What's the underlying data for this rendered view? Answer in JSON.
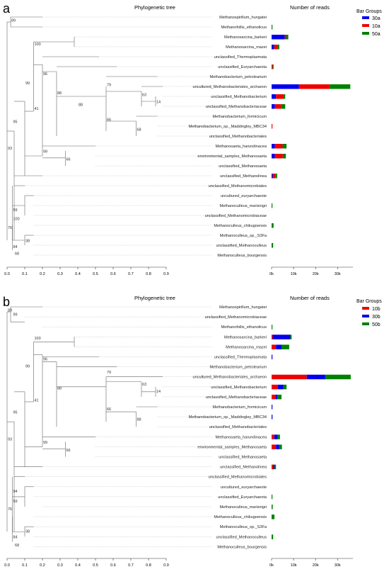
{
  "panel_a": {
    "letter": "a",
    "tree_title": "Phylogenetic tree",
    "reads_title": "Number of reads",
    "legend_title": "Bar Groups",
    "legend": [
      {
        "label": "30a",
        "color": "#0000ee"
      },
      {
        "label": "10a",
        "color": "#ee0000"
      },
      {
        "label": "50a",
        "color": "#008000"
      }
    ],
    "taxa": [
      {
        "name": "Methanospirillum_hungatei",
        "reads": [
          0,
          0,
          0
        ]
      },
      {
        "name": "Methanofollis_ethanolicus",
        "reads": [
          0,
          0,
          300
        ]
      },
      {
        "name": "Methanosarcina_barkeri",
        "reads": [
          6000,
          600,
          1000
        ]
      },
      {
        "name": "Methanosarcina_mazei",
        "reads": [
          1200,
          1500,
          800
        ]
      },
      {
        "name": "unclassified_Thermoplasmata",
        "reads": [
          0,
          0,
          0
        ]
      },
      {
        "name": "unclassified_Euryarchaeota",
        "reads": [
          0,
          500,
          400
        ]
      },
      {
        "name": "Methanobacterium_petrolearium",
        "reads": [
          0,
          0,
          0
        ]
      },
      {
        "name": "uncultured_Methanobacteriales_archaeon",
        "reads": [
          12500,
          14000,
          9300
        ]
      },
      {
        "name": "unclassified_Methanobacterium",
        "reads": [
          2000,
          3500,
          700
        ]
      },
      {
        "name": "unclassified_Methanobacteriaceae",
        "reads": [
          1500,
          2800,
          1900
        ]
      },
      {
        "name": "Methanobacterium_formicicum",
        "reads": [
          0,
          0,
          0
        ]
      },
      {
        "name": "Methanobacterium_sp._Maddingley_MBC34",
        "reads": [
          0,
          300,
          0
        ]
      },
      {
        "name": "unclassified_Methanobacteriales",
        "reads": [
          0,
          0,
          0
        ]
      },
      {
        "name": "Methanosaeta_harundinacea",
        "reads": [
          1500,
          3500,
          1800
        ]
      },
      {
        "name": "environmental_samples_Methanosaeta",
        "reads": [
          1500,
          3600,
          1400
        ]
      },
      {
        "name": "unclassified_Methanosaeta",
        "reads": [
          0,
          0,
          0
        ]
      },
      {
        "name": "unclassified_Methanolinea",
        "reads": [
          500,
          1200,
          800
        ]
      },
      {
        "name": "unclassified_Methanomicrobiales",
        "reads": [
          0,
          0,
          0
        ]
      },
      {
        "name": "uncultured_euryarchaeote",
        "reads": [
          0,
          0,
          0
        ]
      },
      {
        "name": "Methanoculleus_marisnigri",
        "reads": [
          0,
          0,
          300
        ]
      },
      {
        "name": "unclassified_Methanomicrobiaceae",
        "reads": [
          0,
          0,
          0
        ]
      },
      {
        "name": "Methanoculleus_chikugoensis",
        "reads": [
          0,
          0,
          900
        ]
      },
      {
        "name": "Methanoculleus_sp._S3Fa",
        "reads": [
          0,
          0,
          0
        ]
      },
      {
        "name": "unclassified_Methanoculleus",
        "reads": [
          0,
          0,
          700
        ]
      },
      {
        "name": "Methanoculleus_bourgensis",
        "reads": [
          0,
          0,
          0
        ]
      }
    ],
    "bootstraps": [
      {
        "label": "89",
        "row": 0.4,
        "x": 0.02
      },
      {
        "label": "100",
        "row": 2.8,
        "x": 0.15
      },
      {
        "label": "96",
        "row": 5.8,
        "x": 0.2
      },
      {
        "label": "99",
        "row": 6.7,
        "x": 0.1
      },
      {
        "label": "88",
        "row": 7.7,
        "x": 0.28
      },
      {
        "label": "79",
        "row": 6.9,
        "x": 0.56
      },
      {
        "label": "63",
        "row": 7.9,
        "x": 0.76
      },
      {
        "label": "88",
        "row": 8.9,
        "x": 0.4
      },
      {
        "label": "14",
        "row": 8.6,
        "x": 0.84
      },
      {
        "label": "41",
        "row": 9.3,
        "x": 0.15
      },
      {
        "label": "66",
        "row": 10.4,
        "x": 0.56
      },
      {
        "label": "68",
        "row": 11.4,
        "x": 0.73
      },
      {
        "label": "95",
        "row": 10.6,
        "x": 0.03
      },
      {
        "label": "99",
        "row": 13.6,
        "x": 0.2
      },
      {
        "label": "66",
        "row": 14.4,
        "x": 0.33
      },
      {
        "label": "93",
        "row": 13.3,
        "x": 0.0
      },
      {
        "label": "59",
        "row": 19.5,
        "x": 0.03
      },
      {
        "label": "100",
        "row": 20.4,
        "x": 0.03
      },
      {
        "label": "76",
        "row": 21.3,
        "x": 0.0
      },
      {
        "label": "38",
        "row": 22.6,
        "x": 0.1
      },
      {
        "label": "84",
        "row": 23.2,
        "x": 0.03
      },
      {
        "label": "68",
        "row": 23.9,
        "x": 0.04
      }
    ]
  },
  "panel_b": {
    "letter": "b",
    "tree_title": "Phylogenetic tree",
    "reads_title": "Number of reads",
    "legend_title": "Bar Groups",
    "legend": [
      {
        "label": "10b",
        "color": "#ee0000"
      },
      {
        "label": "30b",
        "color": "#0000ee"
      },
      {
        "label": "50b",
        "color": "#008000"
      }
    ],
    "taxa": [
      {
        "name": "Methanospirillum_hungatei",
        "reads": [
          0,
          0,
          0
        ]
      },
      {
        "name": "unclassified_Methanomicrobiaceae",
        "reads": [
          0,
          0,
          0
        ]
      },
      {
        "name": "Methanofollis_ethanolicus",
        "reads": [
          0,
          0,
          300
        ]
      },
      {
        "name": "Methanosarcina_barkeri",
        "reads": [
          500,
          8000,
          600
        ]
      },
      {
        "name": "Methanosarcina_mazei",
        "reads": [
          2000,
          2500,
          3500
        ]
      },
      {
        "name": "unclassified_Thermoplasmata",
        "reads": [
          0,
          200,
          0
        ]
      },
      {
        "name": "Methanobacterium_petrolearium",
        "reads": [
          0,
          0,
          0
        ]
      },
      {
        "name": "uncultured_Methanobacteriales_archaeon",
        "reads": [
          16000,
          8500,
          11500
        ]
      },
      {
        "name": "unclassified_Methanobacterium",
        "reads": [
          2800,
          2500,
          1500
        ]
      },
      {
        "name": "unclassified_Methanobacteriaceae",
        "reads": [
          1800,
          800,
          1900
        ]
      },
      {
        "name": "Methanobacterium_formicicum",
        "reads": [
          0,
          200,
          0
        ]
      },
      {
        "name": "Methanobacterium_sp._Maddingley_MBC34",
        "reads": [
          0,
          400,
          0
        ]
      },
      {
        "name": "unclassified_Methanobacteriales",
        "reads": [
          0,
          0,
          0
        ]
      },
      {
        "name": "Methanosaeta_harundinacea",
        "reads": [
          1200,
          1600,
          1000
        ]
      },
      {
        "name": "environmental_samples_Methanosaeta",
        "reads": [
          2000,
          1500,
          1200
        ]
      },
      {
        "name": "unclassified_Methanosaeta",
        "reads": [
          0,
          0,
          0
        ]
      },
      {
        "name": "unclassified_Methanolinea",
        "reads": [
          700,
          600,
          700
        ]
      },
      {
        "name": "unclassified_Methanomicrobiales",
        "reads": [
          0,
          0,
          0
        ]
      },
      {
        "name": "uncultured_euryarchaeote",
        "reads": [
          0,
          0,
          0
        ]
      },
      {
        "name": "unclassified_Euryarchaeota",
        "reads": [
          0,
          0,
          300
        ]
      },
      {
        "name": "Methanoculleus_marisnigri",
        "reads": [
          0,
          0,
          500
        ]
      },
      {
        "name": "Methanoculleus_chikugoensis",
        "reads": [
          0,
          0,
          1300
        ]
      },
      {
        "name": "Methanoculleus_sp._S3Fa",
        "reads": [
          0,
          0,
          0
        ]
      },
      {
        "name": "unclassified_Methanoculleus",
        "reads": [
          0,
          0,
          700
        ]
      },
      {
        "name": "Methanoculleus_bourgensis",
        "reads": [
          0,
          0,
          0
        ]
      }
    ],
    "bootstraps": [
      {
        "label": "89",
        "row": 0.4,
        "x": 0.0
      },
      {
        "label": "99",
        "row": 0.8,
        "x": 0.03
      },
      {
        "label": "100",
        "row": 3.2,
        "x": 0.15
      },
      {
        "label": "96",
        "row": 5.3,
        "x": 0.2
      },
      {
        "label": "99",
        "row": 6.0,
        "x": 0.1
      },
      {
        "label": "79",
        "row": 6.6,
        "x": 0.56
      },
      {
        "label": "63",
        "row": 7.8,
        "x": 0.76
      },
      {
        "label": "88",
        "row": 8.2,
        "x": 0.28
      },
      {
        "label": "14",
        "row": 8.5,
        "x": 0.84
      },
      {
        "label": "41",
        "row": 9.4,
        "x": 0.15
      },
      {
        "label": "66",
        "row": 10.3,
        "x": 0.56
      },
      {
        "label": "88",
        "row": 11.3,
        "x": 0.73
      },
      {
        "label": "95",
        "row": 10.6,
        "x": 0.03
      },
      {
        "label": "99",
        "row": 13.6,
        "x": 0.2
      },
      {
        "label": "66",
        "row": 14.4,
        "x": 0.33
      },
      {
        "label": "93",
        "row": 13.3,
        "x": 0.0
      },
      {
        "label": "94",
        "row": 18.5,
        "x": 0.03
      },
      {
        "label": "59",
        "row": 19.5,
        "x": 0.03
      },
      {
        "label": "76",
        "row": 20.3,
        "x": 0.0
      },
      {
        "label": "38",
        "row": 22.5,
        "x": 0.1
      },
      {
        "label": "84",
        "row": 23.1,
        "x": 0.03
      },
      {
        "label": "68",
        "row": 23.9,
        "x": 0.04
      }
    ]
  },
  "tree_axis_ticks": [
    "0.0",
    "0.1",
    "0.2",
    "0.3",
    "0.4",
    "0.5",
    "0.6",
    "0.7",
    "0.8",
    "0.9"
  ],
  "reads_axis_ticks": [
    "0k",
    "10k",
    "20k",
    "30k"
  ]
}
